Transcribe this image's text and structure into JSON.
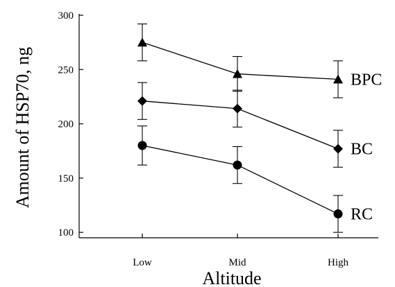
{
  "chart_data": {
    "type": "line",
    "title": "",
    "xlabel": "Altitude",
    "ylabel": "Amount of HSP70, ng",
    "categories": [
      "Low",
      "Mid",
      "High"
    ],
    "ylim": [
      95,
      300
    ],
    "yticks": [
      100,
      150,
      200,
      250,
      300
    ],
    "grid": false,
    "legend": "none",
    "series": [
      {
        "name": "BPC",
        "marker": "triangle",
        "values": [
          275,
          246,
          241
        ],
        "errors": [
          17,
          16,
          17
        ]
      },
      {
        "name": "BC",
        "marker": "diamond",
        "values": [
          221,
          214,
          177
        ],
        "errors": [
          17,
          17,
          17
        ]
      },
      {
        "name": "RC",
        "marker": "circle",
        "values": [
          180,
          162,
          117
        ],
        "errors": [
          18,
          17,
          17
        ]
      }
    ]
  }
}
